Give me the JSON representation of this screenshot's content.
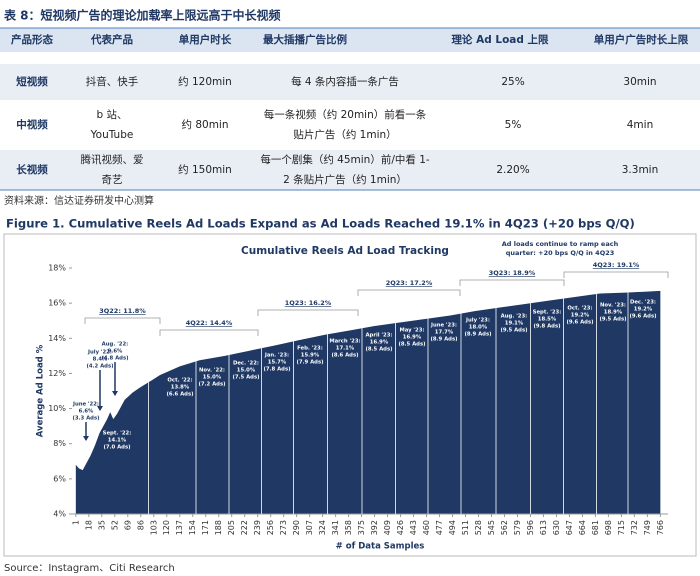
{
  "title": "表 8：短视频广告的理论加载率上限远高于中长视频",
  "table": {
    "header": [
      "产品形态",
      "代表产品",
      "单用户时长",
      "最大插播广告比例",
      "理论 Ad Load 上限",
      "单用户广告时长上限"
    ],
    "rows": [
      [
        [
          "短视频"
        ],
        [
          "抖音、快手"
        ],
        [
          "约 120min"
        ],
        [
          "每 4 条内容插一条广告"
        ],
        [
          "25%"
        ],
        [
          "30min"
        ]
      ],
      [
        [
          "中视频"
        ],
        [
          "b 站、",
          "YouTube"
        ],
        [
          "约 80min"
        ],
        [
          "每一条视频（约 20min）前看一条",
          "贴片广告（约 1min）"
        ],
        [
          "5%"
        ],
        [
          "4min"
        ]
      ],
      [
        [
          "长视频"
        ],
        [
          "腾讯视频、爱",
          "奇艺"
        ],
        [
          "约 150min"
        ],
        [
          "每一个剧集（约 45min）前/中看 1-",
          "2 条贴片广告（约 1min）"
        ],
        [
          "2.20%"
        ],
        [
          "3.3min"
        ]
      ]
    ]
  },
  "table_source": "资料来源：信达证券研发中心测算",
  "figure_title": "Figure 1. Cumulative Reels Ad Loads Expand as Ad Loads Reached 19.1% in 4Q23 (+20 bps Q/Q)",
  "chart_data": {
    "type": "area",
    "title": "Cumulative Reels Ad Load Tracking",
    "x_label": "# of Data Samples",
    "y_label": "Average Ad Load %",
    "color": "#1f3864",
    "grid": false,
    "x": [
      1,
      5,
      10,
      15,
      20,
      26,
      32,
      37,
      42,
      46,
      50,
      55,
      65,
      75,
      85,
      100,
      111,
      137,
      163,
      196,
      229,
      262,
      294,
      327,
      360,
      392,
      425,
      458,
      491,
      524,
      556,
      589,
      621,
      654,
      687,
      720,
      745,
      766
    ],
    "values": [
      6.8,
      6.6,
      6.5,
      6.9,
      7.3,
      7.9,
      8.6,
      9.0,
      9.4,
      9.8,
      9.4,
      9.7,
      10.5,
      10.9,
      11.2,
      11.6,
      11.9,
      12.4,
      12.75,
      13.0,
      13.3,
      13.6,
      13.9,
      14.2,
      14.45,
      14.7,
      14.9,
      15.1,
      15.3,
      15.55,
      15.75,
      15.95,
      16.15,
      16.35,
      16.55,
      16.6,
      16.65,
      16.7
    ],
    "xlim": [
      -4,
      776
    ],
    "ylim": [
      4,
      18
    ],
    "xticks": [
      1,
      18,
      35,
      52,
      69,
      86,
      103,
      120,
      137,
      154,
      171,
      188,
      205,
      222,
      239,
      256,
      273,
      290,
      307,
      324,
      341,
      358,
      375,
      392,
      409,
      426,
      443,
      460,
      477,
      494,
      511,
      528,
      545,
      562,
      579,
      596,
      613,
      630,
      647,
      664,
      681,
      698,
      715,
      732,
      749,
      766
    ],
    "yticks": [
      {
        "value": 4,
        "label": "4%"
      },
      {
        "value": 6,
        "label": "6%"
      },
      {
        "value": 8,
        "label": "8%"
      },
      {
        "value": 10,
        "label": "10%"
      },
      {
        "value": 12,
        "label": "12%"
      },
      {
        "value": 14,
        "label": "14%"
      },
      {
        "value": 16,
        "label": "16%"
      },
      {
        "value": 18,
        "label": "18%"
      }
    ],
    "note": [
      "Ad loads continue to ramp each",
      "quarter: +20 bps Q/Q in 4Q23"
    ],
    "quarters": [
      "3Q22: 11.8%",
      "4Q22: 14.4%",
      "1Q23: 16.2%",
      "2Q23: 17.2%",
      "3Q23: 18.9%",
      "4Q23: 19.1%"
    ],
    "callouts": [
      [
        "June '22:",
        "6.6%",
        "(3.3 Ads)"
      ],
      [
        "July '22:",
        "8.4%",
        "(4.2 Ads)"
      ],
      [
        "Aug. '22:",
        "9.6%",
        "(4.8 Ads)"
      ]
    ],
    "months": [
      [
        "Sept. '22:",
        "14.1%",
        "(7.0 Ads)"
      ],
      [
        "Oct. '22:",
        "13.8%",
        "(6.6 Ads)"
      ],
      [
        "Nov. '22:",
        "15.0%",
        "(7.2 Ads)"
      ],
      [
        "Dec. '22:",
        "15.0%",
        "(7.5 Ads)"
      ],
      [
        "Jan. '23:",
        "15.7%",
        "(7.8 Ads)"
      ],
      [
        "Feb. '23:",
        "15.9%",
        "(7.9 Ads)"
      ],
      [
        "March '23:",
        "17.1%",
        "(8.6 Ads)"
      ],
      [
        "April '23:",
        "16.9%",
        "(8.5 Ads)"
      ],
      [
        "May '23:",
        "16.9%",
        "(8.5 Ads)"
      ],
      [
        "June '23:",
        "17.7%",
        "(8.9 Ads)"
      ],
      [
        "July '23:",
        "18.0%",
        "(8.9 Ads)"
      ],
      [
        "Aug. '23:",
        "19.1%",
        "(9.5 Ads)"
      ],
      [
        "Sept. '23:",
        "18.5%",
        "(9.8 Ads)"
      ],
      [
        "Oct. '23:",
        "19.2%",
        "(9.6 Ads)"
      ],
      [
        "Nov. '23:",
        "18.9%",
        "(9.5 Ads)"
      ],
      [
        "Dec. '23:",
        "19.2%",
        "(9.6 Ads)"
      ]
    ]
  },
  "source": "Source：Instagram、Citi Research"
}
